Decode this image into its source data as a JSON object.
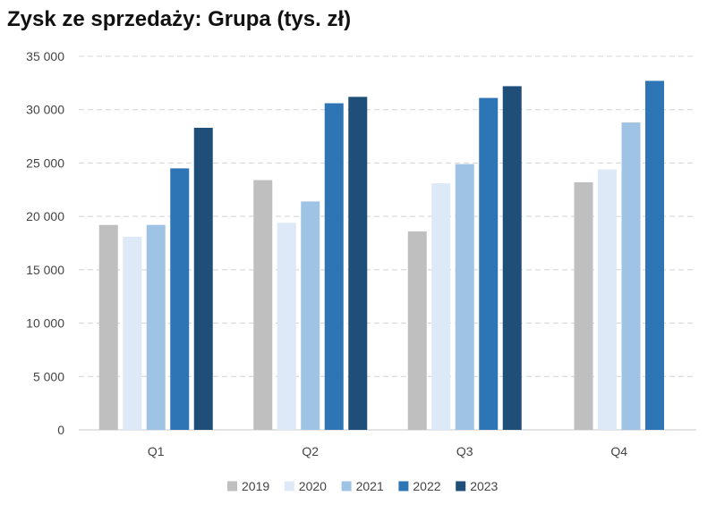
{
  "chart_data": {
    "type": "bar",
    "title": "Zysk ze sprzedaży: Grupa (tys. zł)",
    "xlabel": "",
    "ylabel": "",
    "categories": [
      "Q1",
      "Q2",
      "Q3",
      "Q4"
    ],
    "ylim": [
      0,
      35000
    ],
    "yticks": [
      0,
      5000,
      10000,
      15000,
      20000,
      25000,
      30000,
      35000
    ],
    "ytick_labels": [
      "0",
      "5 000",
      "10 000",
      "15 000",
      "20 000",
      "25 000",
      "30 000",
      "35 000"
    ],
    "grid": true,
    "legend_position": "bottom",
    "series": [
      {
        "name": "2019",
        "color": "#bfbfbf",
        "values": [
          19200,
          23400,
          18600,
          23200
        ]
      },
      {
        "name": "2020",
        "color": "#dde9f6",
        "values": [
          18100,
          19400,
          23100,
          24400
        ]
      },
      {
        "name": "2021",
        "color": "#9fc3e5",
        "values": [
          19200,
          21400,
          24900,
          28800
        ]
      },
      {
        "name": "2022",
        "color": "#2e75b6",
        "values": [
          24500,
          30600,
          31100,
          32700
        ]
      },
      {
        "name": "2023",
        "color": "#1f4e79",
        "values": [
          28300,
          31200,
          32200,
          null
        ]
      }
    ]
  }
}
